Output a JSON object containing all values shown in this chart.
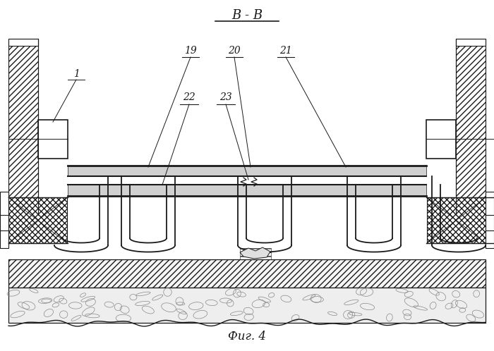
{
  "title": "В - В",
  "fig_label": "Фиг. 4",
  "bg_color": "#ffffff",
  "line_color": "#1a1a1a",
  "lw_main": 1.2,
  "lw_thin": 0.7,
  "lw_thick": 2.0
}
